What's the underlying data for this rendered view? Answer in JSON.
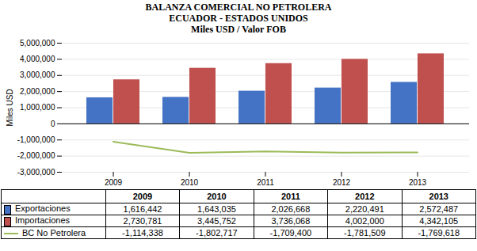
{
  "chart_data": {
    "type": "bar",
    "title": "BALANZA COMERCIAL NO PETROLERA",
    "subtitle": [
      "ECUADOR - ESTADOS UNIDOS",
      "Miles USD / Valor FOB"
    ],
    "ylabel": "Miles USD",
    "categories": [
      "2009",
      "2010",
      "2011",
      "2012",
      "2013"
    ],
    "series": [
      {
        "name": "Exportaciones",
        "type": "bar",
        "color": "#4472C4",
        "values": [
          1616442,
          1643035,
          2026668,
          2220491,
          2572487
        ],
        "value_labels": [
          "1,616,442",
          "1,643,035",
          "2,026,668",
          "2,220,491",
          "2,572,487"
        ]
      },
      {
        "name": "Importaciones",
        "type": "bar",
        "color": "#C0504D",
        "values": [
          2730781,
          3445752,
          3736068,
          4002000,
          4342105
        ],
        "value_labels": [
          "2,730,781",
          "3,445,752",
          "3,736,068",
          "4,002,000",
          "4,342,105"
        ]
      },
      {
        "name": "BC No Petrolera",
        "type": "line",
        "color": "#9BBB59",
        "values": [
          -1114338,
          -1802717,
          -1709400,
          -1781509,
          -1769618
        ],
        "value_labels": [
          "-1,114,338",
          "-1,802,717",
          "-1,709,400",
          "-1,781,509",
          "-1,769,618"
        ]
      }
    ],
    "ylim": [
      -3000000,
      5000000
    ],
    "yticks": [
      {
        "value": -3000000,
        "label": "-3,000,000"
      },
      {
        "value": -2000000,
        "label": "-2,000,000"
      },
      {
        "value": -1000000,
        "label": "-1,000,000"
      },
      0,
      {
        "value": 1000000,
        "label": "1,000,000"
      },
      {
        "value": 2000000,
        "label": "2,000,000"
      },
      {
        "value": 3000000,
        "label": "3,000,000"
      },
      {
        "value": 4000000,
        "label": "4,000,000"
      },
      {
        "value": 5000000,
        "label": "5,000,000"
      }
    ],
    "grid": true,
    "legend": "bottom"
  }
}
